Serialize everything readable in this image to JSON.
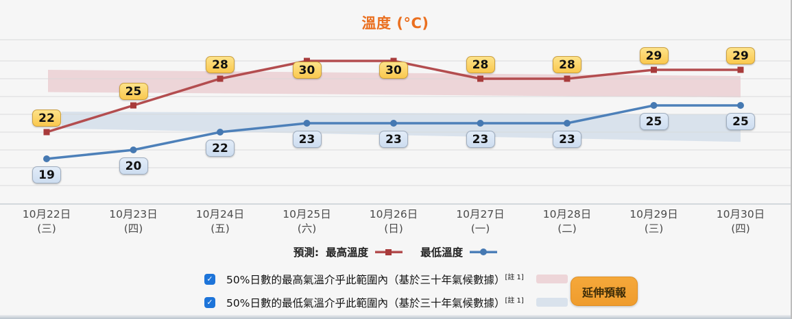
{
  "title": "溫度 (°C)",
  "colors": {
    "title": "#ea6f1f",
    "max_line": "#b34d4f",
    "max_marker": "#a83b3b",
    "min_line": "#4d80b9",
    "min_marker": "#4679b2",
    "max_band": "#edd5d8",
    "min_band": "#d9e2ec",
    "grid": "#d8d9da",
    "axis": "#c6cdd4",
    "checkbox": "#1d74d9",
    "button_bg": "#f5a83a"
  },
  "chart_data": {
    "type": "line",
    "title": "溫度 (°C)",
    "categories": [
      {
        "date": "10月22日",
        "day": "(三)"
      },
      {
        "date": "10月23日",
        "day": "(四)"
      },
      {
        "date": "10月24日",
        "day": "(五)"
      },
      {
        "date": "10月25日",
        "day": "(六)"
      },
      {
        "date": "10月26日",
        "day": "(日)"
      },
      {
        "date": "10月27日",
        "day": "(一)"
      },
      {
        "date": "10月28日",
        "day": "(二)"
      },
      {
        "date": "10月29日",
        "day": "(三)"
      },
      {
        "date": "10月30日",
        "day": "(四)"
      }
    ],
    "series": [
      {
        "name": "最高溫度",
        "values": [
          22,
          25,
          28,
          30,
          30,
          28,
          28,
          29,
          29
        ]
      },
      {
        "name": "最低溫度",
        "values": [
          19,
          20,
          22,
          23,
          23,
          23,
          23,
          25,
          25
        ]
      }
    ],
    "bands": [
      {
        "name": "50%日數最高氣溫氣候範圍",
        "top_c": [
          29.0,
          28.3
        ],
        "bottom_c": [
          26.5,
          25.9
        ]
      },
      {
        "name": "50%日數最低氣溫氣候範圍",
        "top_c": [
          24.3,
          24.0
        ],
        "bottom_c": [
          22.4,
          20.9
        ]
      }
    ],
    "ylim": [
      14,
      32.5
    ],
    "grid": "horizontal",
    "legend_position": "bottom"
  },
  "legend": {
    "prefix": "預測:",
    "max_label": "最高溫度",
    "min_label": "最低溫度"
  },
  "options": [
    {
      "checked": true,
      "label": "50%日數的最高氣溫介乎此範圍內（基於三十年氣候數據）",
      "sup": "[註 1]"
    },
    {
      "checked": true,
      "label": "50%日數的最低氣溫介乎此範圍內（基於三十年氣候數據）",
      "sup": "[註 1]"
    }
  ],
  "button": {
    "label": "延伸預報"
  },
  "check_glyph": "✓"
}
